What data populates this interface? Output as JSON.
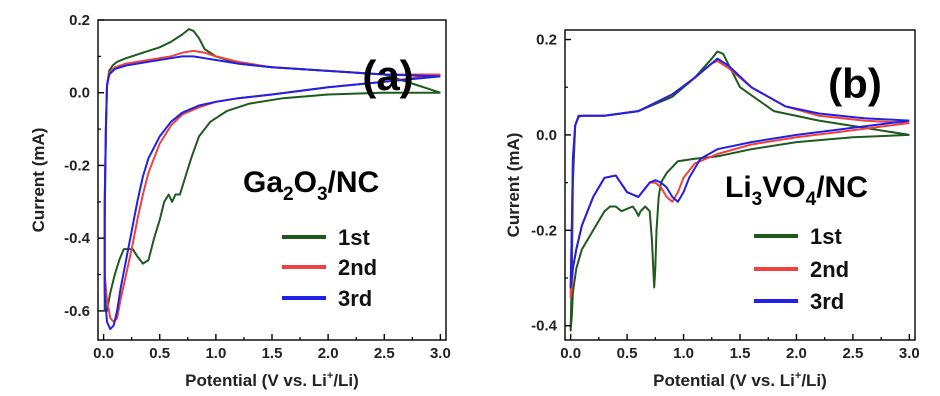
{
  "chart_data": [
    {
      "type": "line",
      "panel_label": "(a)",
      "material": {
        "main": "Ga",
        "sub1": "2",
        "mid": "O",
        "sub2": "3",
        "tail": "/NC"
      },
      "xlabel": {
        "pre": "Potential (V vs. Li",
        "sup": "+",
        "post": "/Li)"
      },
      "ylabel": "Current (mA)",
      "xlim": [
        -0.05,
        3.05
      ],
      "ylim": [
        -0.68,
        0.2
      ],
      "xticks": [
        "0.0",
        "0.5",
        "1.0",
        "1.5",
        "2.0",
        "2.5",
        "3.0"
      ],
      "xtick_values": [
        0,
        0.5,
        1.0,
        1.5,
        2.0,
        2.5,
        3.0
      ],
      "yticks": [
        "0.2",
        "0.0",
        "-0.2",
        "-0.4",
        "-0.6"
      ],
      "ytick_values": [
        0.2,
        0.0,
        -0.2,
        -0.4,
        -0.6
      ],
      "legend_position": "lower-right",
      "series": [
        {
          "name": "1st",
          "color": "#1e5a1e",
          "x": [
            3.0,
            2.5,
            2.0,
            1.6,
            1.3,
            1.1,
            0.95,
            0.85,
            0.78,
            0.72,
            0.68,
            0.64,
            0.61,
            0.58,
            0.54,
            0.5,
            0.45,
            0.4,
            0.35,
            0.3,
            0.26,
            0.22,
            0.18,
            0.14,
            0.1,
            0.06,
            0.03,
            0.01,
            0.01,
            0.02,
            0.03,
            0.05,
            0.08,
            0.12,
            0.2,
            0.35,
            0.5,
            0.6,
            0.7,
            0.76,
            0.8,
            0.85,
            0.9,
            1.0,
            1.2,
            1.5,
            2.0,
            2.5,
            3.0
          ],
          "y": [
            0.0,
            0.0,
            -0.005,
            -0.015,
            -0.03,
            -0.05,
            -0.08,
            -0.12,
            -0.18,
            -0.24,
            -0.28,
            -0.28,
            -0.3,
            -0.28,
            -0.3,
            -0.35,
            -0.4,
            -0.46,
            -0.47,
            -0.45,
            -0.43,
            -0.43,
            -0.43,
            -0.46,
            -0.5,
            -0.55,
            -0.6,
            -0.6,
            -0.35,
            -0.1,
            0.02,
            0.06,
            0.075,
            0.085,
            0.095,
            0.11,
            0.125,
            0.14,
            0.16,
            0.175,
            0.17,
            0.15,
            0.12,
            0.1,
            0.08,
            0.07,
            0.06,
            0.05,
            0.0
          ]
        },
        {
          "name": "2nd",
          "color": "#f04040",
          "x": [
            3.0,
            2.5,
            2.0,
            1.5,
            1.2,
            1.0,
            0.85,
            0.7,
            0.6,
            0.5,
            0.4,
            0.35,
            0.3,
            0.25,
            0.2,
            0.15,
            0.12,
            0.09,
            0.06,
            0.03,
            0.01,
            0.01,
            0.02,
            0.03,
            0.05,
            0.1,
            0.2,
            0.4,
            0.6,
            0.7,
            0.8,
            0.9,
            1.0,
            1.2,
            1.5,
            2.0,
            2.5,
            3.0
          ],
          "y": [
            0.05,
            0.03,
            0.015,
            -0.005,
            -0.015,
            -0.025,
            -0.04,
            -0.06,
            -0.09,
            -0.14,
            -0.22,
            -0.28,
            -0.35,
            -0.43,
            -0.5,
            -0.57,
            -0.62,
            -0.63,
            -0.62,
            -0.57,
            -0.5,
            -0.3,
            -0.1,
            0.02,
            0.055,
            0.07,
            0.08,
            0.09,
            0.1,
            0.11,
            0.115,
            0.11,
            0.1,
            0.085,
            0.07,
            0.06,
            0.05,
            0.05
          ]
        },
        {
          "name": "3rd",
          "color": "#2020e6",
          "x": [
            3.0,
            2.5,
            2.0,
            1.5,
            1.2,
            1.0,
            0.85,
            0.7,
            0.6,
            0.5,
            0.4,
            0.35,
            0.3,
            0.25,
            0.2,
            0.15,
            0.12,
            0.09,
            0.06,
            0.03,
            0.01,
            0.01,
            0.02,
            0.03,
            0.05,
            0.1,
            0.2,
            0.4,
            0.6,
            0.7,
            0.8,
            0.9,
            1.0,
            1.2,
            1.5,
            2.0,
            2.5,
            3.0
          ],
          "y": [
            0.045,
            0.03,
            0.015,
            -0.005,
            -0.015,
            -0.025,
            -0.035,
            -0.055,
            -0.08,
            -0.12,
            -0.18,
            -0.23,
            -0.3,
            -0.38,
            -0.46,
            -0.54,
            -0.6,
            -0.64,
            -0.65,
            -0.63,
            -0.55,
            -0.3,
            -0.1,
            0.02,
            0.05,
            0.065,
            0.075,
            0.085,
            0.095,
            0.1,
            0.1,
            0.095,
            0.09,
            0.08,
            0.07,
            0.06,
            0.05,
            0.045
          ]
        }
      ]
    },
    {
      "type": "line",
      "panel_label": "(b)",
      "material": {
        "main": "Li",
        "sub1": "3",
        "mid": "VO",
        "sub2": "4",
        "tail": "/NC"
      },
      "xlabel": {
        "pre": "Potential (V vs. Li",
        "sup": "+",
        "post": "/Li)"
      },
      "ylabel": "Current (mA)",
      "xlim": [
        -0.05,
        3.05
      ],
      "ylim": [
        -0.43,
        0.22
      ],
      "xticks": [
        "0.0",
        "0.5",
        "1.0",
        "1.5",
        "2.0",
        "2.5",
        "3.0"
      ],
      "xtick_values": [
        0,
        0.5,
        1.0,
        1.5,
        2.0,
        2.5,
        3.0
      ],
      "yticks": [
        "0.2",
        "0.0",
        "-0.2",
        "-0.4"
      ],
      "ytick_values": [
        0.2,
        0.0,
        -0.2,
        -0.4
      ],
      "legend_position": "lower-right",
      "series": [
        {
          "name": "1st",
          "color": "#1e5a1e",
          "x": [
            3.0,
            2.5,
            2.0,
            1.6,
            1.3,
            1.1,
            0.95,
            0.85,
            0.8,
            0.78,
            0.76,
            0.75,
            0.74,
            0.72,
            0.7,
            0.66,
            0.62,
            0.6,
            0.58,
            0.55,
            0.5,
            0.45,
            0.4,
            0.35,
            0.3,
            0.2,
            0.1,
            0.05,
            0.02,
            0.01,
            0.0,
            0.01,
            0.02,
            0.04,
            0.07,
            0.1,
            0.3,
            0.6,
            0.9,
            1.1,
            1.25,
            1.3,
            1.35,
            1.5,
            1.8,
            2.2,
            2.6,
            3.0
          ],
          "y": [
            0.0,
            -0.005,
            -0.015,
            -0.03,
            -0.045,
            -0.05,
            -0.055,
            -0.08,
            -0.1,
            -0.13,
            -0.2,
            -0.28,
            -0.32,
            -0.22,
            -0.16,
            -0.15,
            -0.16,
            -0.17,
            -0.16,
            -0.15,
            -0.155,
            -0.16,
            -0.15,
            -0.15,
            -0.16,
            -0.2,
            -0.24,
            -0.28,
            -0.33,
            -0.38,
            -0.41,
            -0.3,
            -0.1,
            0.02,
            0.04,
            0.04,
            0.04,
            0.05,
            0.08,
            0.12,
            0.16,
            0.175,
            0.17,
            0.1,
            0.05,
            0.03,
            0.015,
            0.0
          ]
        },
        {
          "name": "2nd",
          "color": "#f04040",
          "x": [
            3.0,
            2.5,
            2.0,
            1.6,
            1.3,
            1.1,
            1.0,
            0.95,
            0.9,
            0.85,
            0.8,
            0.75,
            0.7,
            0.6,
            0.5,
            0.4,
            0.3,
            0.2,
            0.1,
            0.05,
            0.02,
            0.01,
            0.0,
            0.01,
            0.02,
            0.04,
            0.07,
            0.1,
            0.3,
            0.6,
            0.9,
            1.1,
            1.25,
            1.3,
            1.4,
            1.6,
            1.9,
            2.2,
            2.6,
            3.0
          ],
          "y": [
            0.025,
            0.01,
            -0.005,
            -0.02,
            -0.04,
            -0.06,
            -0.09,
            -0.12,
            -0.14,
            -0.13,
            -0.11,
            -0.1,
            -0.1,
            -0.13,
            -0.12,
            -0.085,
            -0.09,
            -0.13,
            -0.19,
            -0.24,
            -0.28,
            -0.32,
            -0.34,
            -0.2,
            -0.05,
            0.02,
            0.038,
            0.04,
            0.04,
            0.05,
            0.085,
            0.12,
            0.15,
            0.155,
            0.14,
            0.1,
            0.06,
            0.04,
            0.03,
            0.025
          ]
        },
        {
          "name": "3rd",
          "color": "#2020e6",
          "x": [
            3.0,
            2.5,
            2.0,
            1.6,
            1.3,
            1.15,
            1.05,
            1.0,
            0.95,
            0.9,
            0.85,
            0.8,
            0.75,
            0.7,
            0.6,
            0.5,
            0.4,
            0.3,
            0.2,
            0.1,
            0.05,
            0.02,
            0.01,
            0.0,
            0.01,
            0.02,
            0.04,
            0.07,
            0.1,
            0.3,
            0.6,
            0.9,
            1.1,
            1.25,
            1.3,
            1.4,
            1.6,
            1.9,
            2.2,
            2.6,
            3.0
          ],
          "y": [
            0.03,
            0.015,
            0.0,
            -0.015,
            -0.03,
            -0.05,
            -0.09,
            -0.12,
            -0.14,
            -0.13,
            -0.11,
            -0.1,
            -0.095,
            -0.1,
            -0.13,
            -0.12,
            -0.085,
            -0.09,
            -0.13,
            -0.19,
            -0.24,
            -0.28,
            -0.3,
            -0.32,
            -0.2,
            -0.05,
            0.02,
            0.038,
            0.04,
            0.04,
            0.05,
            0.085,
            0.12,
            0.15,
            0.16,
            0.145,
            0.1,
            0.06,
            0.045,
            0.035,
            0.03
          ]
        }
      ]
    }
  ]
}
